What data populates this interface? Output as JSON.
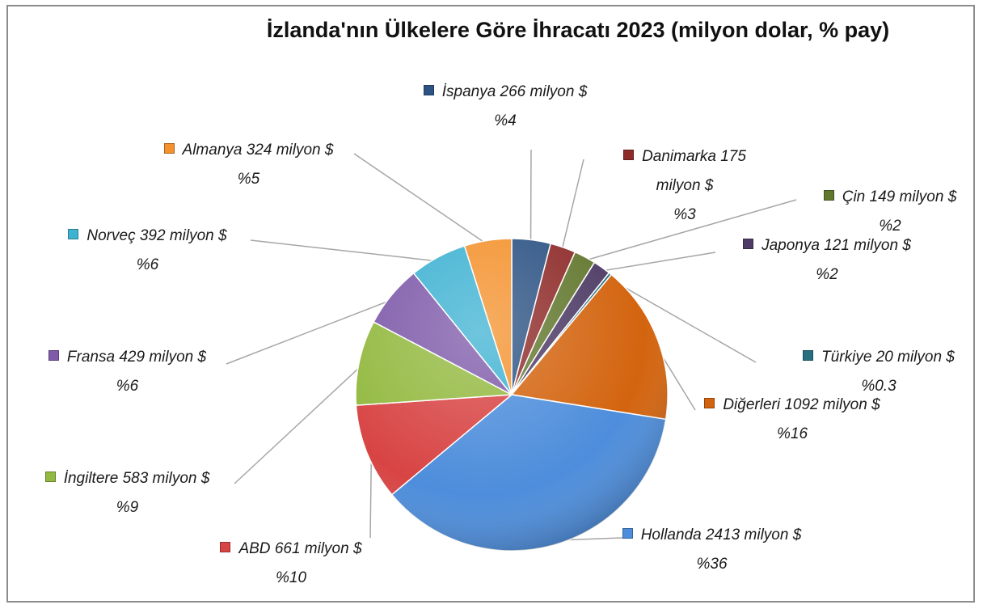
{
  "chart_data": {
    "type": "pie",
    "title": "İzlanda'nın Ülkelere Göre İhracatı 2023 (milyon dolar, % pay)",
    "categories": [
      "İspanya",
      "Danimarka",
      "Çin",
      "Japonya",
      "Türkiye",
      "Diğerleri",
      "Hollanda",
      "ABD",
      "İngiltere",
      "Fransa",
      "Norveç",
      "Almanya"
    ],
    "values": [
      266,
      175,
      149,
      121,
      20,
      1092,
      2413,
      661,
      583,
      429,
      392,
      324
    ],
    "value_labels": [
      "266 milyon $",
      "175 milyon $",
      "149 milyon $",
      "121 milyon $",
      "20 milyon $",
      "1092 milyon $",
      "2413 milyon $",
      "661 milyon $",
      "583 milyon $",
      "429 milyon $",
      "392 milyon $",
      "324 milyon $"
    ],
    "share_labels": [
      "%4",
      "%3",
      "%2",
      "%2",
      "%0.3",
      "%16",
      "%36",
      "%10",
      "%9",
      "%6",
      "%6",
      "%5"
    ],
    "colors": [
      "#2d5384",
      "#8e2c2a",
      "#63782f",
      "#4f3c66",
      "#28707f",
      "#d3640f",
      "#4d8ddb",
      "#d84444",
      "#93b940",
      "#7e5aa9",
      "#3fb2d2",
      "#f4922e"
    ]
  }
}
